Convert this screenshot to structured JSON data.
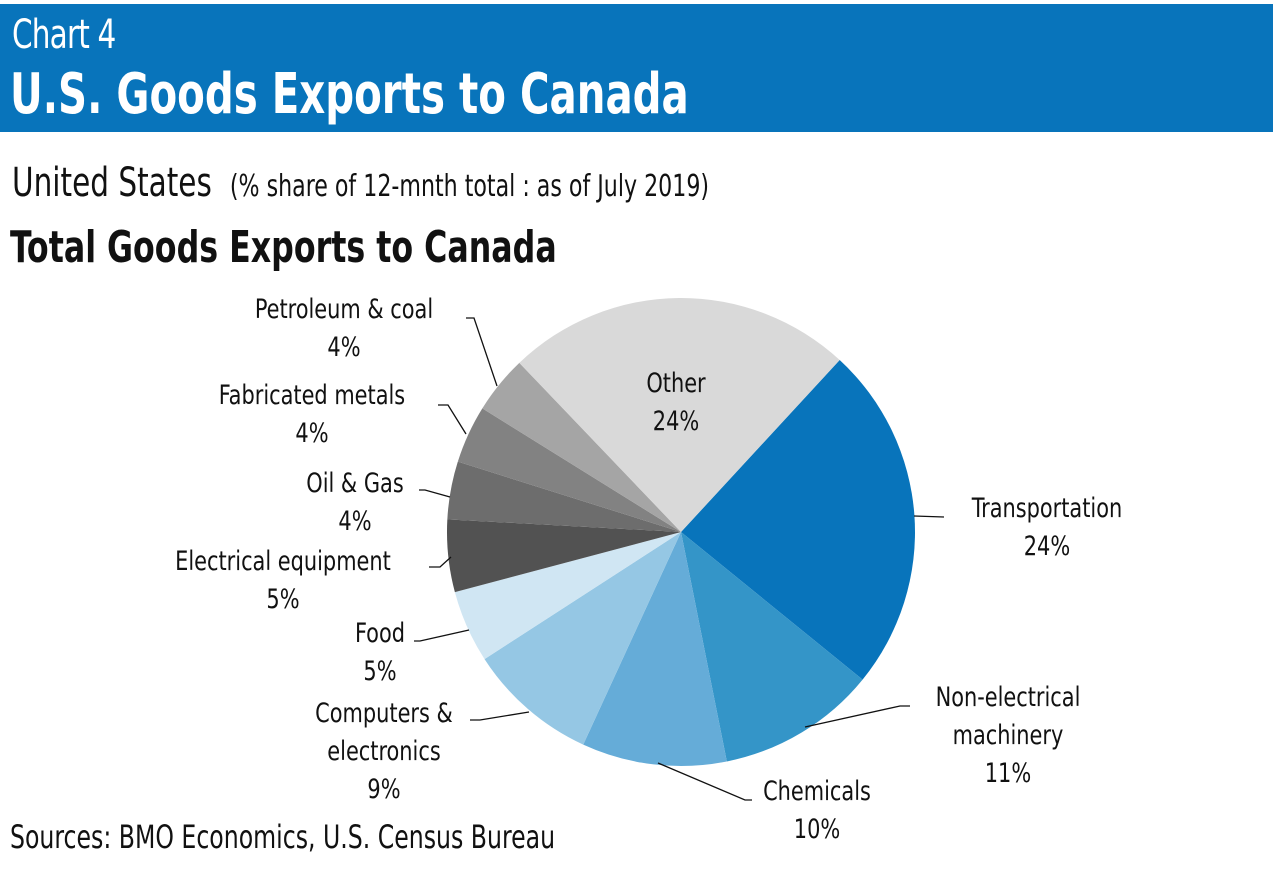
{
  "header": {
    "chart_number": "Chart 4",
    "title": "U.S. Goods Exports to Canada"
  },
  "subtitle": {
    "main": "United States",
    "note": "(% share of 12-mnth total : as of July 2019)"
  },
  "section_title": "Total Goods Exports to Canada",
  "source": "Sources: BMO Economics, U.S. Census Bureau",
  "colors": {
    "banner": "#0874bb",
    "background": "#ffffff"
  },
  "chart_data": {
    "type": "pie",
    "title": "Total Goods Exports to Canada",
    "unit": "%",
    "start_angle_deg": 42.7,
    "direction": "clockwise",
    "slices": [
      {
        "label": "Transportation",
        "value": 24,
        "display": "24%",
        "color": "#0874bb"
      },
      {
        "label": "Non-electrical machinery",
        "value": 11,
        "display": "11%",
        "color": "#3495c8"
      },
      {
        "label": "Chemicals",
        "value": 10,
        "display": "10%",
        "color": "#65acd8"
      },
      {
        "label": "Computers & electronics",
        "value": 9,
        "display": "9%",
        "color": "#95c7e4"
      },
      {
        "label": "Food",
        "value": 5,
        "display": "5%",
        "color": "#d0e6f3"
      },
      {
        "label": "Electrical equipment",
        "value": 5,
        "display": "5%",
        "color": "#525252"
      },
      {
        "label": "Oil & Gas",
        "value": 4,
        "display": "4%",
        "color": "#6d6d6d"
      },
      {
        "label": "Fabricated metals",
        "value": 4,
        "display": "4%",
        "color": "#828282"
      },
      {
        "label": "Petroleum & coal",
        "value": 4,
        "display": "4%",
        "color": "#a5a5a5"
      },
      {
        "label": "Other",
        "value": 24,
        "display": "24%",
        "color": "#d9d9d9"
      }
    ]
  }
}
